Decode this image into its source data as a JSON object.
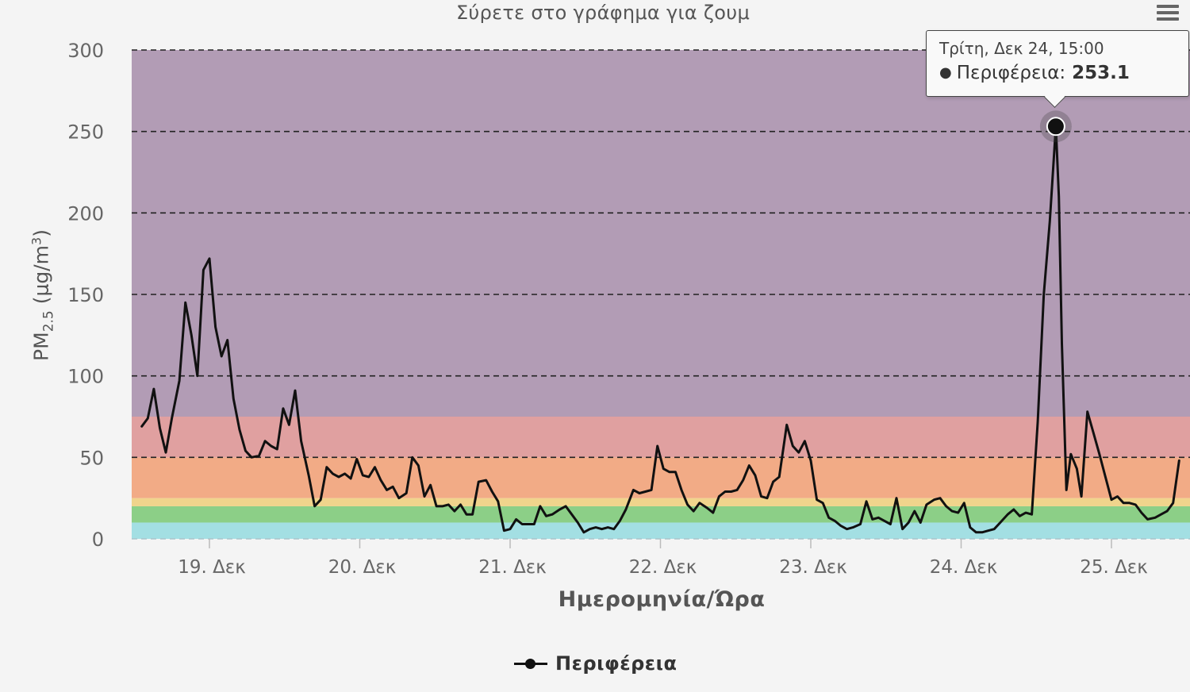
{
  "subtitle": "Σύρετε στο γράφημα για ζουμ",
  "menu_icon": "hamburger-menu-icon",
  "tooltip": {
    "date": "Τρίτη, Δεκ 24, 15:00",
    "series": "Περιφέρεια",
    "value_text": "253.1"
  },
  "legend": {
    "label": "Περιφέρεια"
  },
  "chart_data": {
    "type": "line",
    "ylabel": "PM",
    "ylabel_sub": "2.5",
    "ylabel_unit": "(μg/m",
    "ylabel_unit_sup": "3",
    "ylabel_unit_close": ")",
    "xlabel": "Ημερομηνία/Ώρα",
    "ylim": [
      0,
      300
    ],
    "y_ticks": [
      0,
      50,
      100,
      150,
      200,
      250,
      300
    ],
    "x_tick_labels": [
      "19. Δεκ",
      "20. Δεκ",
      "21. Δεκ",
      "22. Δεκ",
      "23. Δεκ",
      "24. Δεκ",
      "25. Δεκ"
    ],
    "grid": "horizontal-dashed",
    "bands": [
      {
        "from": 0,
        "to": 10,
        "color": "#a3dfe3"
      },
      {
        "from": 10,
        "to": 20,
        "color": "#8ccf87"
      },
      {
        "from": 20,
        "to": 25,
        "color": "#f0d48c"
      },
      {
        "from": 25,
        "to": 50,
        "color": "#f2ab86"
      },
      {
        "from": 50,
        "to": 75,
        "color": "#e0a0a0"
      },
      {
        "from": 75,
        "to": 300,
        "color": "#b29cb5"
      }
    ],
    "line_color": "#111111",
    "highlight": {
      "x": 5.63,
      "y": 253.1
    },
    "series": [
      {
        "name": "Περιφέρεια",
        "points": [
          [
            -0.45,
            69
          ],
          [
            -0.41,
            74
          ],
          [
            -0.37,
            92
          ],
          [
            -0.33,
            68
          ],
          [
            -0.29,
            53
          ],
          [
            -0.25,
            74
          ],
          [
            -0.2,
            97
          ],
          [
            -0.16,
            145
          ],
          [
            -0.12,
            125
          ],
          [
            -0.08,
            100
          ],
          [
            -0.04,
            165
          ],
          [
            0.0,
            172
          ],
          [
            0.04,
            130
          ],
          [
            0.08,
            112
          ],
          [
            0.12,
            122
          ],
          [
            0.16,
            86
          ],
          [
            0.2,
            67
          ],
          [
            0.24,
            54
          ],
          [
            0.28,
            50
          ],
          [
            0.33,
            51
          ],
          [
            0.37,
            60
          ],
          [
            0.41,
            57
          ],
          [
            0.45,
            55
          ],
          [
            0.49,
            80
          ],
          [
            0.53,
            70
          ],
          [
            0.57,
            91
          ],
          [
            0.61,
            60
          ],
          [
            0.66,
            39
          ],
          [
            0.7,
            20
          ],
          [
            0.74,
            24
          ],
          [
            0.78,
            44
          ],
          [
            0.82,
            40
          ],
          [
            0.86,
            38
          ],
          [
            0.9,
            40
          ],
          [
            0.94,
            37
          ],
          [
            0.98,
            49
          ],
          [
            1.02,
            39
          ],
          [
            1.06,
            38
          ],
          [
            1.1,
            44
          ],
          [
            1.14,
            36
          ],
          [
            1.18,
            30
          ],
          [
            1.22,
            32
          ],
          [
            1.26,
            25
          ],
          [
            1.31,
            28
          ],
          [
            1.35,
            50
          ],
          [
            1.39,
            45
          ],
          [
            1.43,
            26
          ],
          [
            1.47,
            33
          ],
          [
            1.51,
            20
          ],
          [
            1.55,
            20
          ],
          [
            1.59,
            21
          ],
          [
            1.63,
            17
          ],
          [
            1.67,
            21
          ],
          [
            1.71,
            15
          ],
          [
            1.75,
            15
          ],
          [
            1.79,
            35
          ],
          [
            1.84,
            36
          ],
          [
            1.88,
            29
          ],
          [
            1.92,
            23
          ],
          [
            1.96,
            5
          ],
          [
            2.0,
            6
          ],
          [
            2.04,
            12
          ],
          [
            2.08,
            9
          ],
          [
            2.12,
            9
          ],
          [
            2.16,
            9
          ],
          [
            2.2,
            20
          ],
          [
            2.24,
            14
          ],
          [
            2.28,
            15
          ],
          [
            2.33,
            18
          ],
          [
            2.37,
            20
          ],
          [
            2.41,
            15
          ],
          [
            2.45,
            10
          ],
          [
            2.49,
            4
          ],
          [
            2.53,
            6
          ],
          [
            2.57,
            7
          ],
          [
            2.61,
            6
          ],
          [
            2.65,
            7
          ],
          [
            2.69,
            6
          ],
          [
            2.73,
            11
          ],
          [
            2.77,
            18
          ],
          [
            2.82,
            30
          ],
          [
            2.86,
            28
          ],
          [
            2.9,
            29
          ],
          [
            2.94,
            30
          ],
          [
            2.98,
            57
          ],
          [
            3.02,
            43
          ],
          [
            3.06,
            41
          ],
          [
            3.1,
            41
          ],
          [
            3.14,
            30
          ],
          [
            3.18,
            21
          ],
          [
            3.22,
            17
          ],
          [
            3.26,
            22
          ],
          [
            3.31,
            19
          ],
          [
            3.35,
            16
          ],
          [
            3.39,
            26
          ],
          [
            3.43,
            29
          ],
          [
            3.47,
            29
          ],
          [
            3.51,
            30
          ],
          [
            3.55,
            36
          ],
          [
            3.59,
            45
          ],
          [
            3.63,
            39
          ],
          [
            3.67,
            26
          ],
          [
            3.71,
            25
          ],
          [
            3.75,
            35
          ],
          [
            3.79,
            38
          ],
          [
            3.84,
            70
          ],
          [
            3.88,
            57
          ],
          [
            3.92,
            53
          ],
          [
            3.96,
            60
          ],
          [
            4.0,
            48
          ],
          [
            4.04,
            24
          ],
          [
            4.08,
            22
          ],
          [
            4.12,
            13
          ],
          [
            4.16,
            11
          ],
          [
            4.2,
            8
          ],
          [
            4.24,
            6
          ],
          [
            4.28,
            7
          ],
          [
            4.33,
            9
          ],
          [
            4.37,
            23
          ],
          [
            4.41,
            12
          ],
          [
            4.45,
            13
          ],
          [
            4.49,
            11
          ],
          [
            4.53,
            9
          ],
          [
            4.57,
            25
          ],
          [
            4.61,
            6
          ],
          [
            4.65,
            10
          ],
          [
            4.69,
            17
          ],
          [
            4.73,
            10
          ],
          [
            4.77,
            21
          ],
          [
            4.82,
            24
          ],
          [
            4.86,
            25
          ],
          [
            4.9,
            20
          ],
          [
            4.94,
            17
          ],
          [
            4.98,
            16
          ],
          [
            5.02,
            22
          ],
          [
            5.06,
            7
          ],
          [
            5.1,
            4
          ],
          [
            5.14,
            4
          ],
          [
            5.18,
            5
          ],
          [
            5.22,
            6
          ],
          [
            5.26,
            10
          ],
          [
            5.31,
            15
          ],
          [
            5.35,
            18
          ],
          [
            5.39,
            14
          ],
          [
            5.43,
            16
          ],
          [
            5.47,
            15
          ],
          [
            5.51,
            72
          ],
          [
            5.55,
            150
          ],
          [
            5.59,
            195
          ],
          [
            5.63,
            253.1
          ],
          [
            5.65,
            210
          ],
          [
            5.67,
            120
          ],
          [
            5.7,
            30
          ],
          [
            5.73,
            52
          ],
          [
            5.77,
            43
          ],
          [
            5.8,
            26
          ],
          [
            5.84,
            78
          ],
          [
            5.88,
            65
          ],
          [
            5.92,
            52
          ],
          [
            5.96,
            38
          ],
          [
            6.0,
            24
          ],
          [
            6.04,
            26
          ],
          [
            6.08,
            22
          ],
          [
            6.12,
            22
          ],
          [
            6.16,
            21
          ],
          [
            6.2,
            16
          ],
          [
            6.24,
            12
          ],
          [
            6.29,
            13
          ],
          [
            6.33,
            15
          ],
          [
            6.37,
            17
          ],
          [
            6.41,
            22
          ],
          [
            6.45,
            48
          ]
        ]
      }
    ]
  }
}
